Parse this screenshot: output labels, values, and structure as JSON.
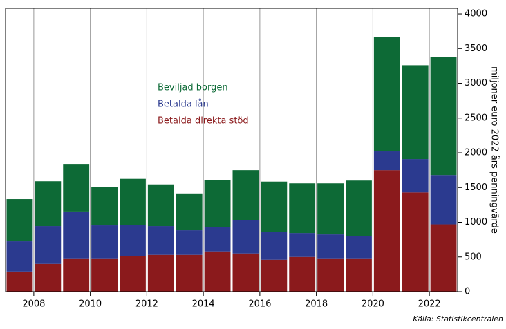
{
  "chart_data": {
    "type": "stacked_bar",
    "y_label": "miljoner euro 2022 års penningvärde",
    "source": "Källa: Statistikcentralen",
    "x": [
      2007,
      2008,
      2009,
      2010,
      2011,
      2012,
      2013,
      2014,
      2015,
      2016,
      2017,
      2018,
      2019,
      2020,
      2021,
      2022
    ],
    "xlim": [
      2007,
      2023
    ],
    "xticks": [
      2008,
      2010,
      2012,
      2014,
      2016,
      2018,
      2020,
      2022
    ],
    "ylim": [
      0,
      4080
    ],
    "yticks": [
      0,
      500,
      1000,
      1500,
      2000,
      2500,
      3000,
      3500,
      4000
    ],
    "grid": true,
    "series": [
      {
        "name": "Betalda direkta stöd",
        "color": "#8b1a1c",
        "values": [
          290,
          400,
          480,
          480,
          510,
          530,
          530,
          580,
          550,
          460,
          500,
          480,
          480,
          1750,
          1430,
          970
        ]
      },
      {
        "name": "Betalda lån",
        "color": "#2b3a8f",
        "values": [
          436,
          545,
          675,
          475,
          455,
          415,
          355,
          355,
          475,
          400,
          345,
          345,
          320,
          270,
          480,
          710
        ]
      },
      {
        "name": "Beviljad borgen",
        "color": "#0d6a36",
        "values": [
          607,
          645,
          675,
          555,
          660,
          600,
          530,
          670,
          725,
          725,
          715,
          735,
          800,
          1650,
          1350,
          1700
        ]
      }
    ]
  }
}
